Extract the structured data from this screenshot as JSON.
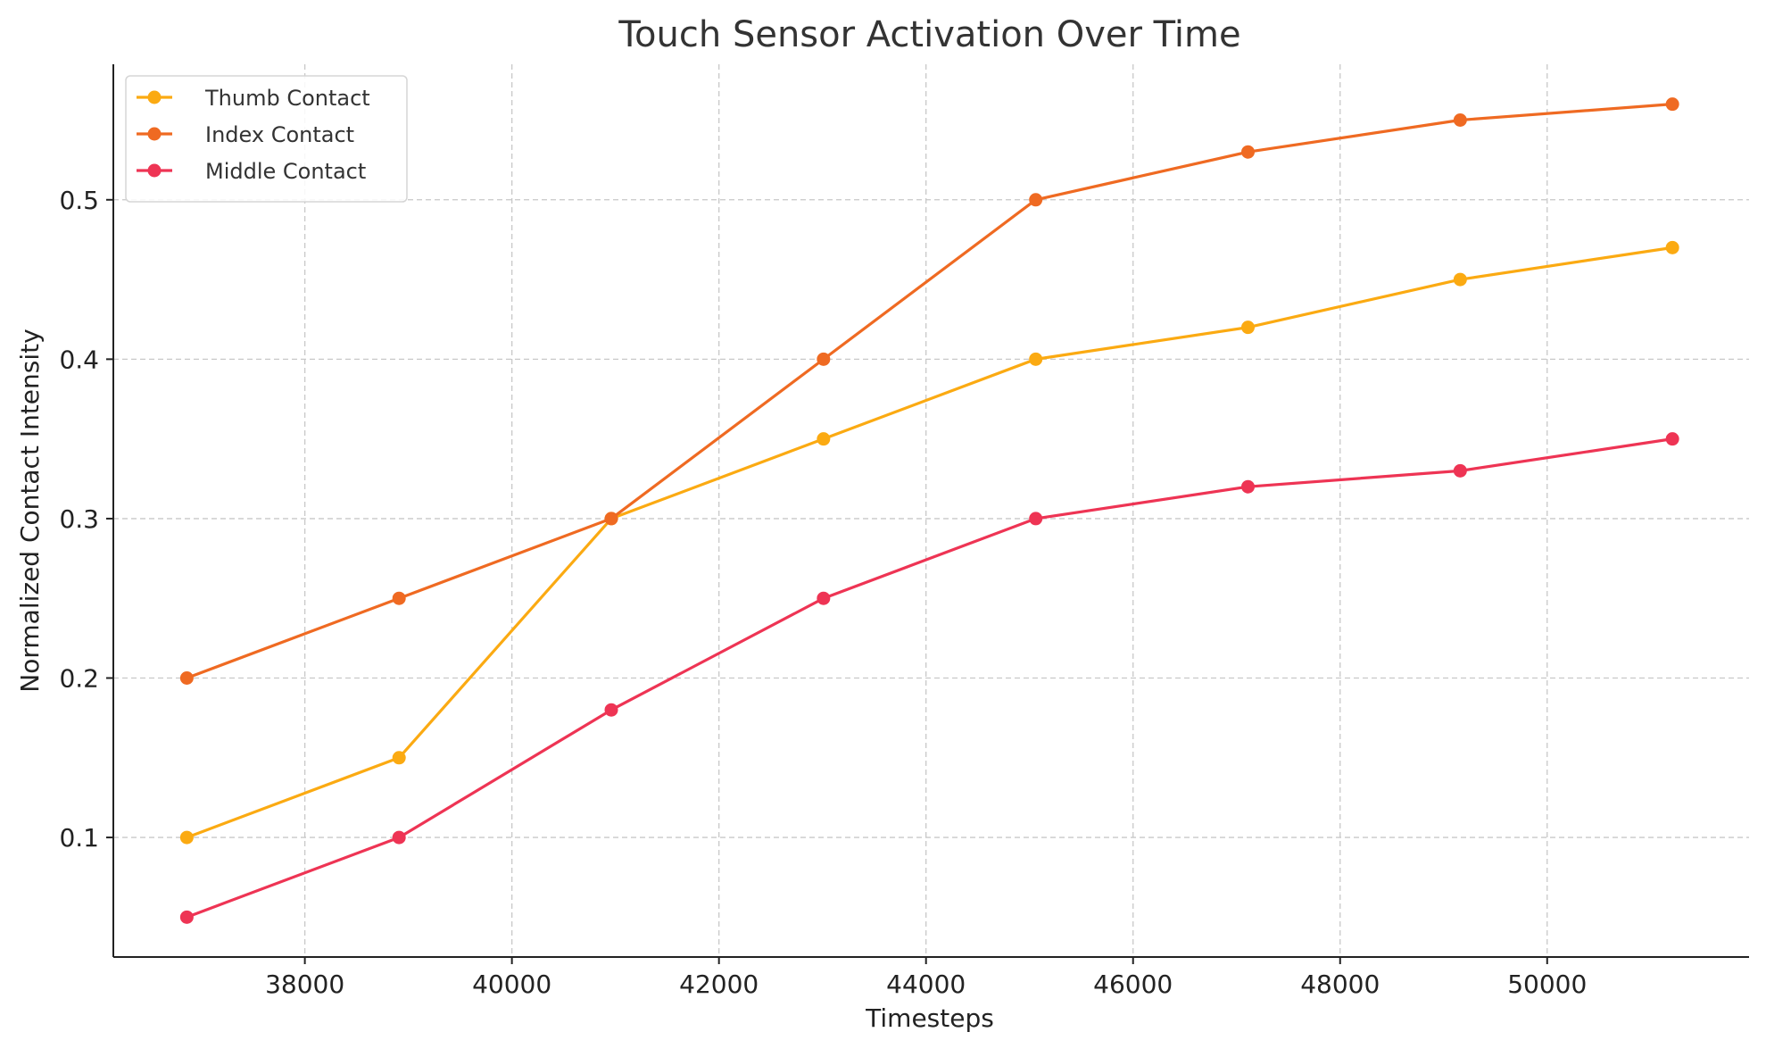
{
  "chart_data": {
    "type": "line",
    "title": "Touch Sensor Activation Over Time",
    "xlabel": "Timesteps",
    "ylabel": "Normalized Contact Intensity",
    "x": [
      36860,
      38910,
      40960,
      43010,
      45060,
      47110,
      49160,
      51210
    ],
    "xlim": [
      36150,
      51950
    ],
    "ylim": [
      0.025,
      0.585
    ],
    "xticks": [
      38000,
      40000,
      42000,
      44000,
      46000,
      48000,
      50000
    ],
    "yticks": [
      0.1,
      0.2,
      0.3,
      0.4,
      0.5
    ],
    "grid": true,
    "legend_position": "top-left",
    "series": [
      {
        "name": "Thumb Contact",
        "color": "#FBAA12",
        "values": [
          0.1,
          0.15,
          0.3,
          0.35,
          0.4,
          0.42,
          0.45,
          0.47
        ]
      },
      {
        "name": "Index Contact",
        "color": "#EF6A22",
        "values": [
          0.2,
          0.25,
          0.3,
          0.4,
          0.5,
          0.53,
          0.55,
          0.56
        ]
      },
      {
        "name": "Middle Contact",
        "color": "#EE3454",
        "values": [
          0.05,
          0.1,
          0.18,
          0.25,
          0.3,
          0.32,
          0.33,
          0.35
        ]
      }
    ]
  }
}
